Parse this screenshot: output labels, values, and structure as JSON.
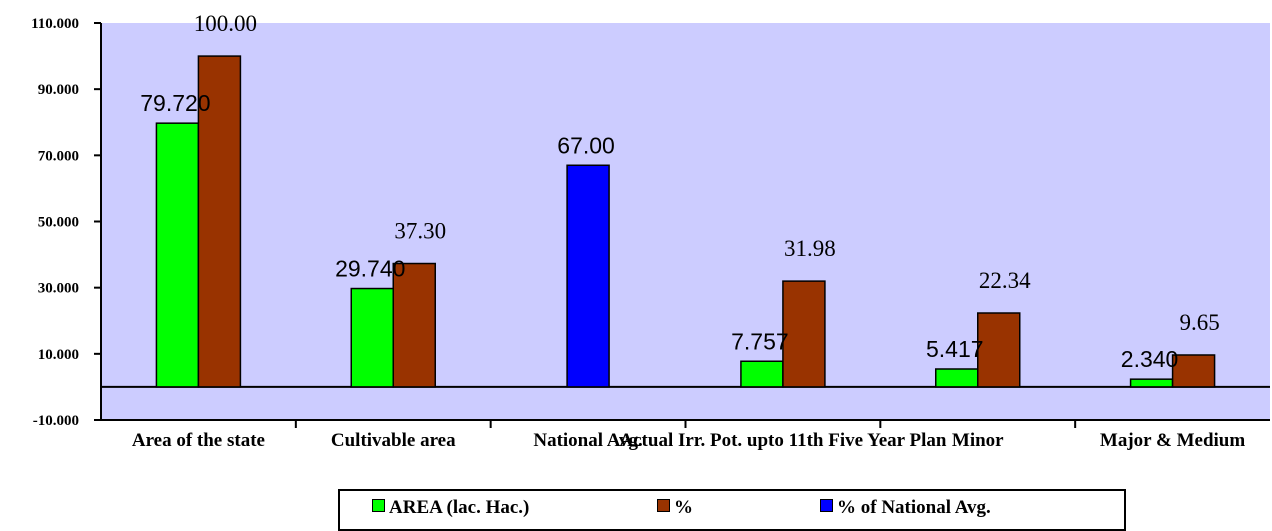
{
  "chart_data": {
    "type": "bar",
    "categories": [
      "Area of the state",
      "Cultivable area",
      "National Avg.",
      "Actual Irr. Pot. upto 11th Five Year Plan",
      "Minor",
      "Major & Medium"
    ],
    "ylim": [
      -10,
      110
    ],
    "yticks": [
      "-10.000",
      "10.000",
      "30.000",
      "50.000",
      "70.000",
      "90.000",
      "110.000"
    ],
    "ytick_values": [
      -10,
      10,
      30,
      50,
      70,
      90,
      110
    ],
    "series": [
      {
        "name": "AREA (lac. Hac.)",
        "color": "#00ff00",
        "values": [
          79.72,
          29.74,
          null,
          7.757,
          5.417,
          2.34
        ],
        "labels": [
          "79.720",
          "29.740",
          "",
          "7.757",
          "5.417",
          "2.340"
        ]
      },
      {
        "name": "%",
        "color": "#993300",
        "values": [
          100.0,
          37.3,
          null,
          31.98,
          22.34,
          9.65
        ],
        "labels": [
          "100.00",
          "37.30",
          "",
          "31.98",
          "22.34",
          "9.65"
        ]
      },
      {
        "name": "% of National Avg.",
        "color": "#0000ff",
        "values": [
          null,
          null,
          67.0,
          null,
          null,
          null
        ],
        "labels": [
          "",
          "",
          "67.00",
          "",
          "",
          ""
        ]
      }
    ],
    "plot_background": "#ccccff",
    "grid": false,
    "legend_position": "bottom"
  }
}
